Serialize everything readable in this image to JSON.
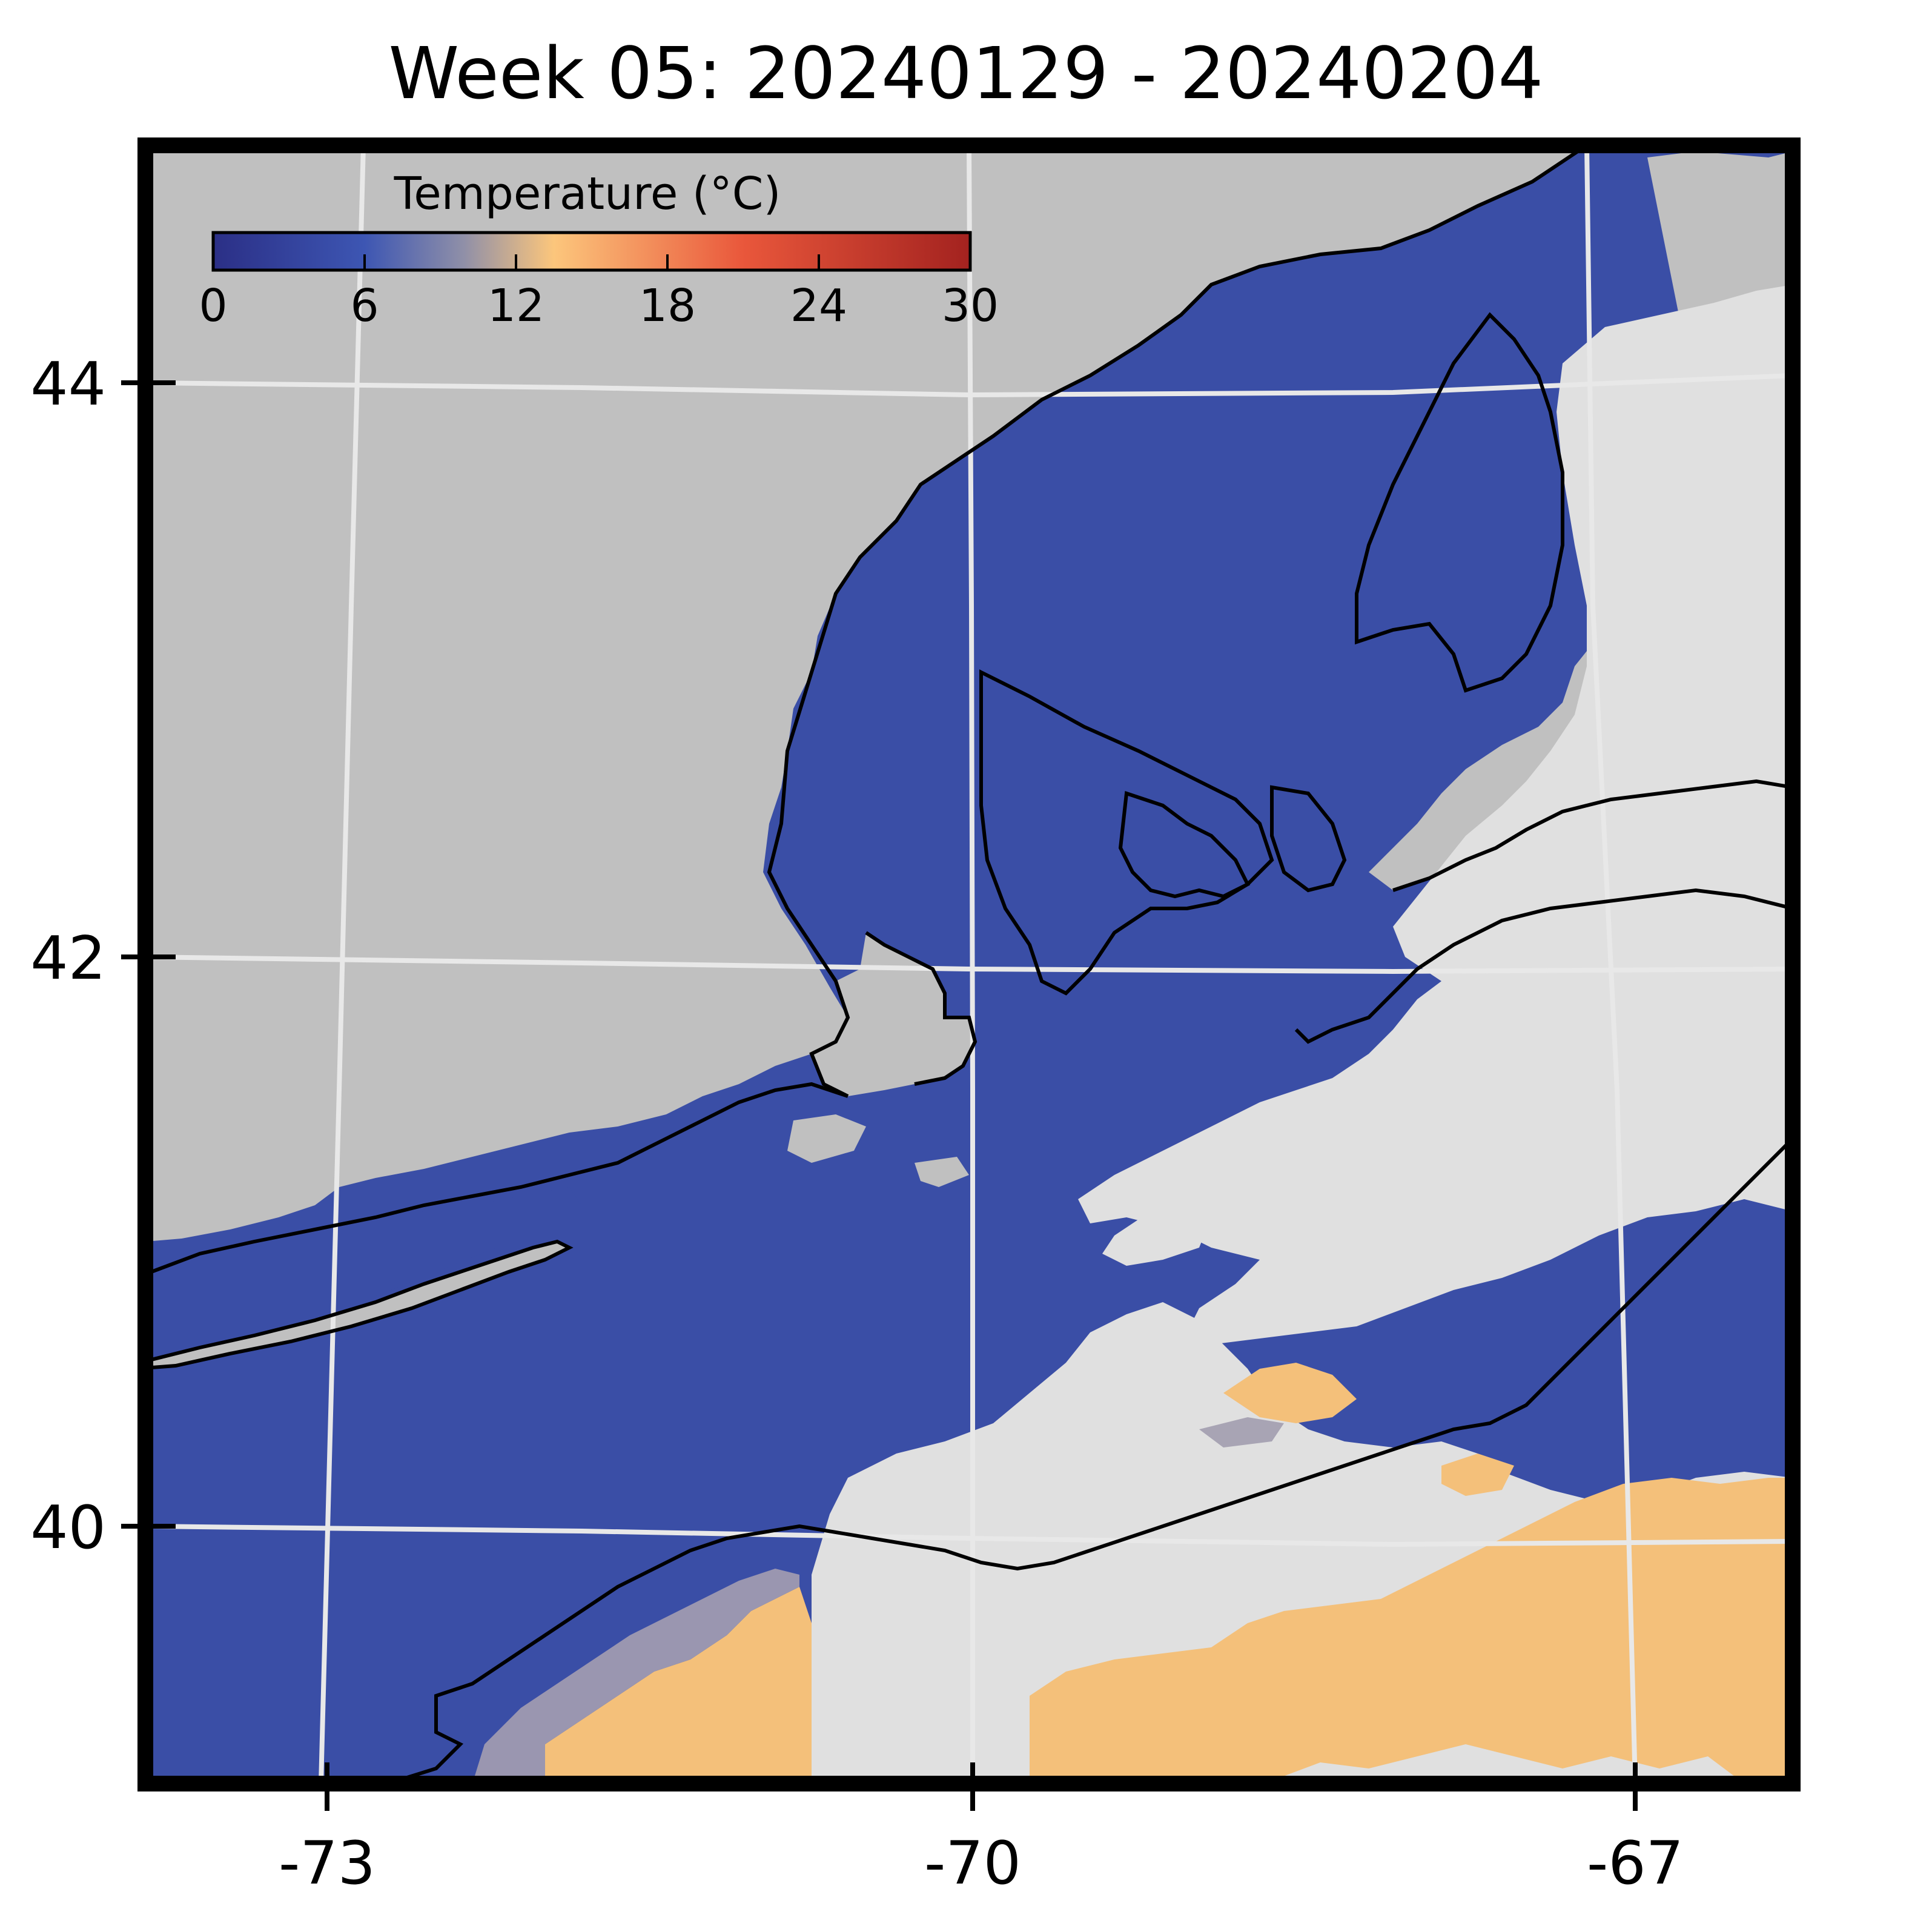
{
  "title": "Week 05: 20240129 - 20240204",
  "colorbar": {
    "title": "Temperature (°C)",
    "ticks": [
      "0",
      "6",
      "12",
      "18",
      "24",
      "30"
    ],
    "colors": [
      "#2b2f86",
      "#3d56b3",
      "#b0a8a8",
      "#fcc67c",
      "#e9573b",
      "#a3221f"
    ]
  },
  "map": {
    "lon_range": [
      -73.5,
      -66.5
    ],
    "lat_range": [
      38.75,
      44.5
    ],
    "x_ticks": [
      "-73",
      "-70",
      "-67"
    ],
    "y_ticks": [
      "44",
      "42",
      "40"
    ],
    "colors": {
      "land": "#c0c0c0",
      "ocean_cold": "#3a4ea6",
      "no_data": "#e0e0e0",
      "warm_water": "#f4c07a",
      "gridline": "#e8e8e8",
      "coastline": "#000000"
    }
  }
}
